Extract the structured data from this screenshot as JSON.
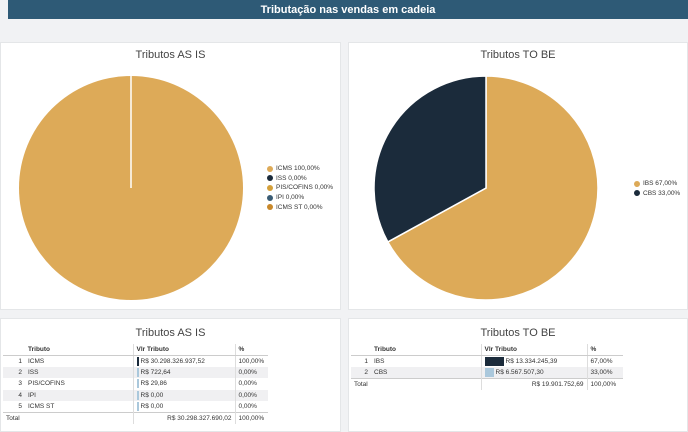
{
  "header": {
    "title": "Tributação nas vendas em cadeia"
  },
  "left_chart": {
    "title": "Tributos AS IS",
    "legend": [
      {
        "label": "ICMS 100,00%",
        "color": "#ddaa58"
      },
      {
        "label": "ISS 0,00%",
        "color": "#1b2b3b"
      },
      {
        "label": "PIS/COFINS 0,00%",
        "color": "#d4a03a"
      },
      {
        "label": "IPI 0,00%",
        "color": "#3a5c74"
      },
      {
        "label": "ICMS ST 0,00%",
        "color": "#c8882a"
      }
    ]
  },
  "right_chart": {
    "title": "Tributos TO BE",
    "legend": [
      {
        "label": "IBS 67,00%",
        "color": "#ddaa58"
      },
      {
        "label": "CBS 33,00%",
        "color": "#1b2b3b"
      }
    ]
  },
  "left_table": {
    "title": "Tributos AS IS",
    "headers": {
      "tributo": "Tributo",
      "vlr": "Vlr Tributo",
      "pct": "%"
    },
    "rows": [
      {
        "idx": "1",
        "tributo": "ICMS",
        "vlr": "R$ 30.298.326.937,52",
        "pct": "100,00%",
        "bar": 1.0
      },
      {
        "idx": "2",
        "tributo": "ISS",
        "vlr": "R$ 722,64",
        "pct": "0,00%",
        "bar": 0.0
      },
      {
        "idx": "3",
        "tributo": "PIS/COFINS",
        "vlr": "R$ 29,86",
        "pct": "0,00%",
        "bar": 0.0
      },
      {
        "idx": "4",
        "tributo": "IPI",
        "vlr": "R$ 0,00",
        "pct": "0,00%",
        "bar": 0.0
      },
      {
        "idx": "5",
        "tributo": "ICMS ST",
        "vlr": "R$ 0,00",
        "pct": "0,00%",
        "bar": 0.0
      }
    ],
    "total": {
      "label": "Total",
      "vlr": "R$ 30.298.327.690,02",
      "pct": "100,00%"
    }
  },
  "right_table": {
    "title": "Tributos TO BE",
    "headers": {
      "tributo": "Tributo",
      "vlr": "Vlr Tributo",
      "pct": "%"
    },
    "rows": [
      {
        "idx": "1",
        "tributo": "IBS",
        "vlr": "R$ 13.334.245,39",
        "pct": "67,00%",
        "bar": 1.0
      },
      {
        "idx": "2",
        "tributo": "CBS",
        "vlr": "R$ 6.567.507,30",
        "pct": "33,00%",
        "bar": 0.49
      }
    ],
    "total": {
      "label": "Total",
      "vlr": "R$ 19.901.752,69",
      "pct": "100,00%"
    }
  },
  "chart_data": [
    {
      "type": "pie",
      "title": "Tributos AS IS",
      "categories": [
        "ICMS",
        "ISS",
        "PIS/COFINS",
        "IPI",
        "ICMS ST"
      ],
      "values": [
        100.0,
        0.0,
        0.0,
        0.0,
        0.0
      ],
      "colors": [
        "#ddaa58",
        "#1b2b3b",
        "#d4a03a",
        "#3a5c74",
        "#c8882a"
      ],
      "legend": "right"
    },
    {
      "type": "pie",
      "title": "Tributos TO BE",
      "categories": [
        "IBS",
        "CBS"
      ],
      "values": [
        67.0,
        33.0
      ],
      "colors": [
        "#ddaa58",
        "#1b2b3b"
      ],
      "legend": "right"
    }
  ]
}
